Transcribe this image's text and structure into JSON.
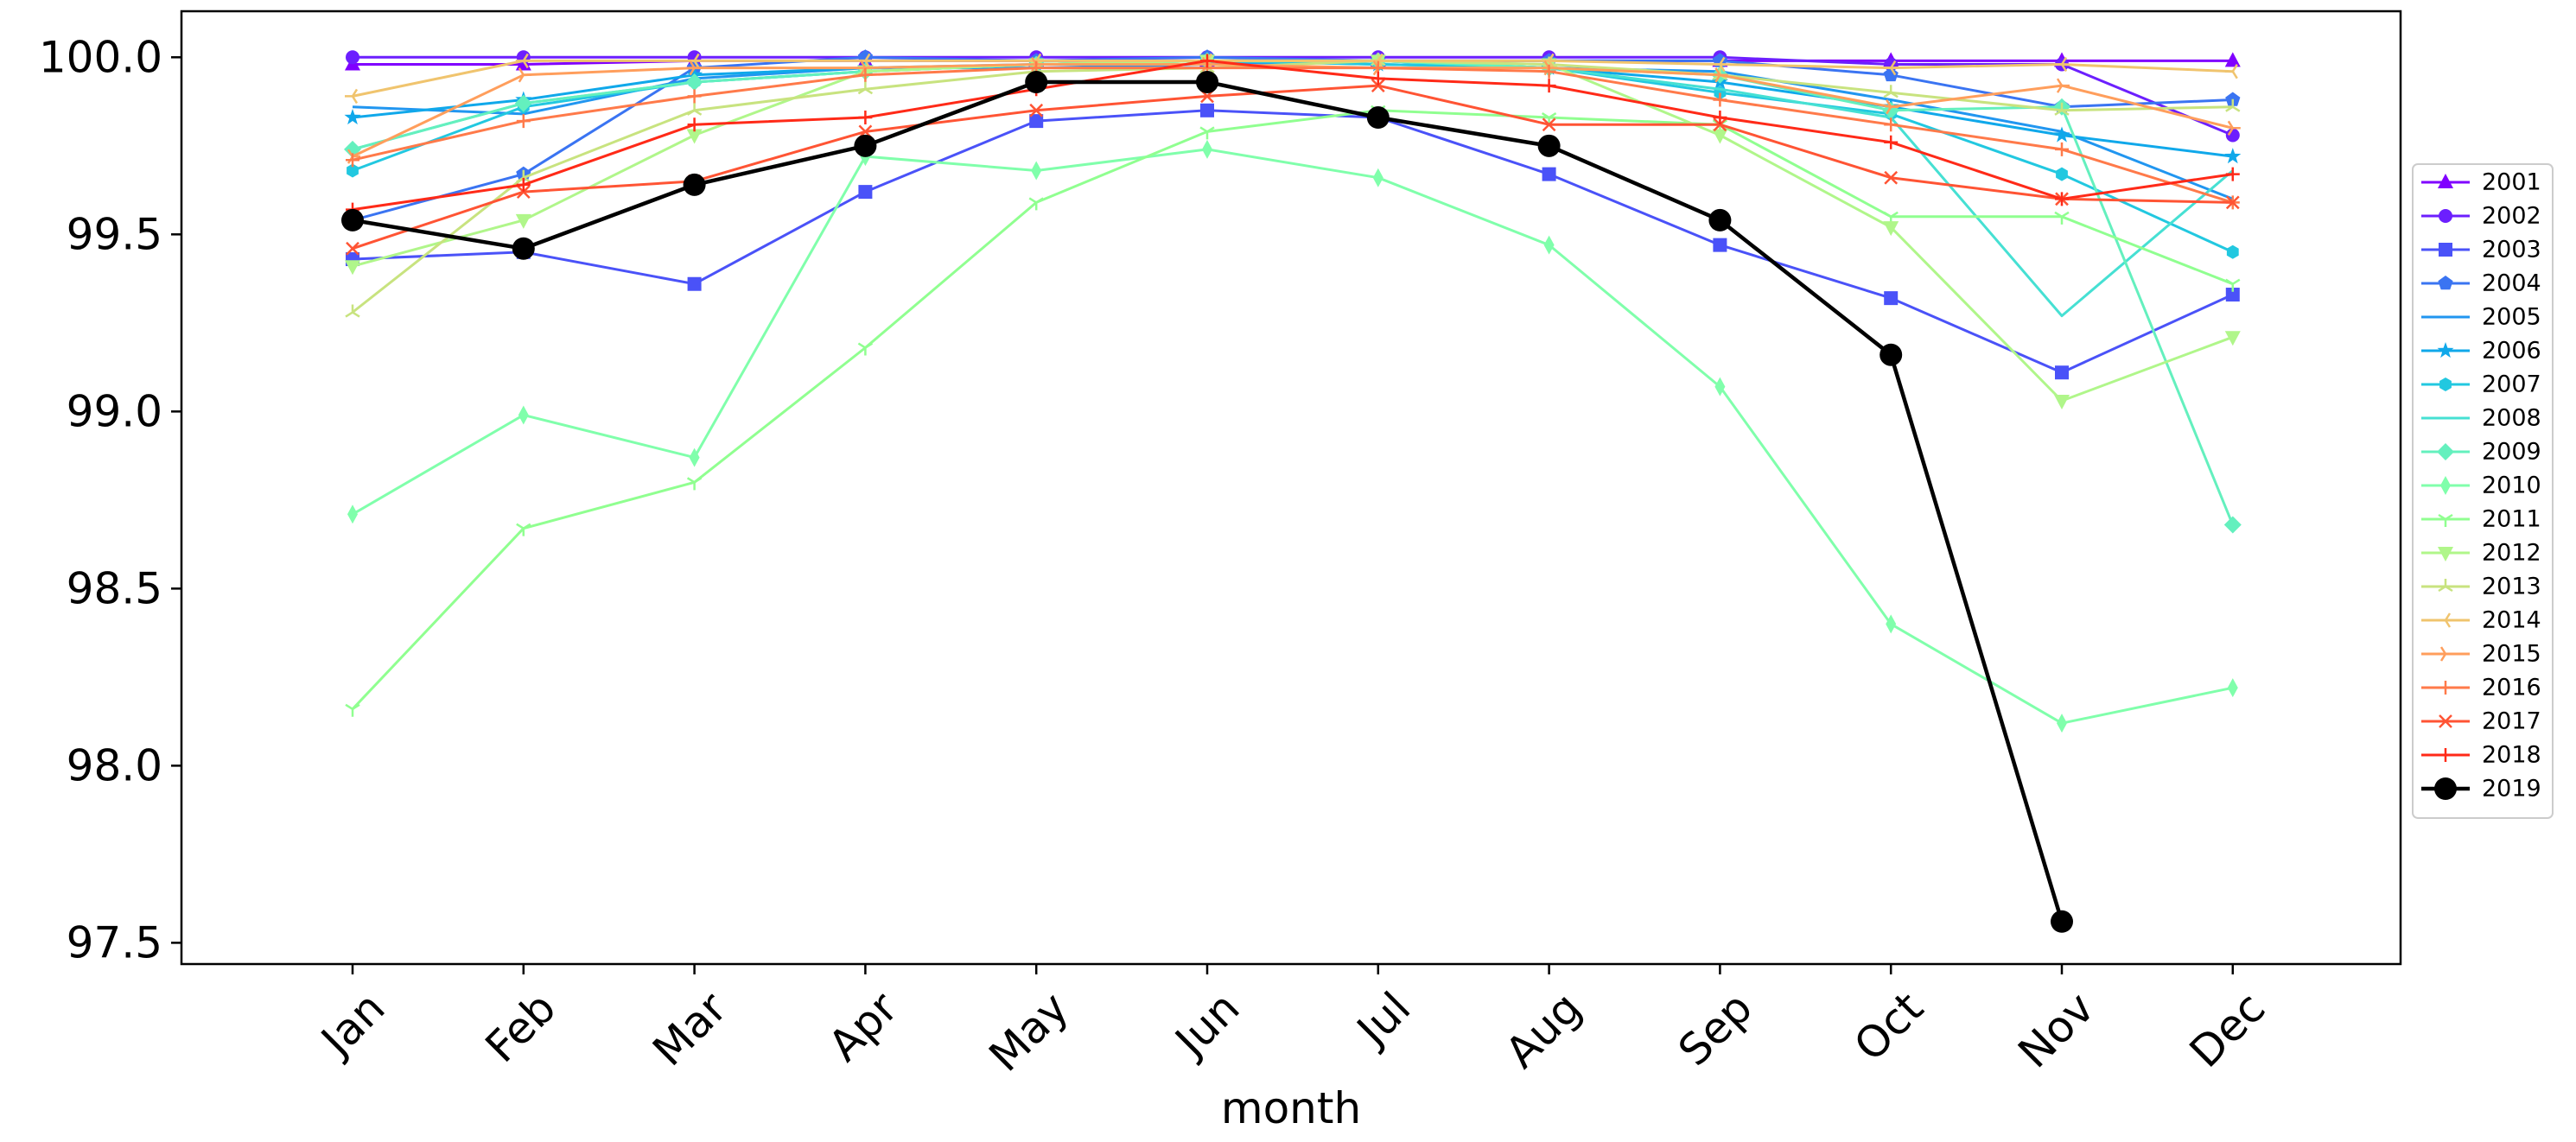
{
  "chart_data": {
    "type": "line",
    "title": "",
    "xlabel": "month",
    "ylabel": "",
    "categories": [
      "Jan",
      "Feb",
      "Mar",
      "Apr",
      "May",
      "Jun",
      "Jul",
      "Aug",
      "Sep",
      "Oct",
      "Nov",
      "Dec"
    ],
    "ylim": [
      97.44,
      100.13
    ],
    "yticks": [
      97.5,
      98.0,
      98.5,
      99.0,
      99.5,
      100.0
    ],
    "ytick_labels": [
      "97.5",
      "98.0",
      "98.5",
      "99.0",
      "99.5",
      "100.0"
    ],
    "grid": false,
    "legend_position": "right",
    "series": [
      {
        "name": "2001",
        "color": "#8000ff",
        "marker": "triangle",
        "values": [
          99.98,
          99.98,
          99.99,
          99.99,
          99.99,
          99.99,
          99.99,
          99.99,
          99.99,
          99.99,
          99.99,
          99.99
        ]
      },
      {
        "name": "2002",
        "color": "#6c1ffe",
        "marker": "circle",
        "values": [
          100.0,
          100.0,
          100.0,
          100.0,
          100.0,
          100.0,
          100.0,
          100.0,
          100.0,
          99.98,
          99.98,
          99.78
        ]
      },
      {
        "name": "2003",
        "color": "#4a52f8",
        "marker": "square",
        "values": [
          99.43,
          99.45,
          99.36,
          99.62,
          99.82,
          99.85,
          99.83,
          99.67,
          99.47,
          99.32,
          99.11,
          99.33
        ]
      },
      {
        "name": "2004",
        "color": "#3a74f2",
        "marker": "pentagon",
        "values": [
          99.54,
          99.67,
          99.97,
          100.0,
          99.99,
          100.0,
          99.99,
          99.99,
          99.99,
          99.95,
          99.86,
          99.88
        ]
      },
      {
        "name": "2005",
        "color": "#2196f0",
        "marker": "none",
        "values": [
          99.86,
          99.84,
          99.94,
          99.97,
          99.97,
          99.98,
          99.99,
          99.97,
          99.96,
          99.88,
          99.79,
          99.6
        ]
      },
      {
        "name": "2006",
        "color": "#10a8ea",
        "marker": "star",
        "values": [
          99.83,
          99.88,
          99.95,
          99.97,
          99.98,
          99.99,
          99.98,
          99.97,
          99.93,
          99.86,
          99.78,
          99.72
        ]
      },
      {
        "name": "2007",
        "color": "#22c8e0",
        "marker": "hexagon",
        "values": [
          99.68,
          99.86,
          99.93,
          99.96,
          99.98,
          99.99,
          99.98,
          99.97,
          99.9,
          99.84,
          99.67,
          99.45
        ]
      },
      {
        "name": "2008",
        "color": "#46e0d3",
        "marker": "none",
        "values": [
          99.74,
          99.87,
          99.93,
          99.96,
          99.98,
          99.99,
          99.99,
          99.97,
          99.91,
          99.83,
          99.27,
          99.68
        ]
      },
      {
        "name": "2009",
        "color": "#64f0be",
        "marker": "diamond",
        "values": [
          99.74,
          99.87,
          99.93,
          99.96,
          99.98,
          99.99,
          99.99,
          99.97,
          99.95,
          99.85,
          99.86,
          98.68
        ]
      },
      {
        "name": "2010",
        "color": "#80ffab",
        "marker": "thin_diamond",
        "values": [
          98.71,
          98.99,
          98.87,
          99.72,
          99.68,
          99.74,
          99.66,
          99.47,
          99.07,
          98.4,
          98.12,
          98.22
        ]
      },
      {
        "name": "2011",
        "color": "#90ff90",
        "marker": "tri_down",
        "values": [
          98.16,
          98.67,
          98.8,
          99.18,
          99.59,
          99.79,
          99.85,
          99.83,
          99.81,
          99.55,
          99.55,
          99.36
        ]
      },
      {
        "name": "2012",
        "color": "#b0f68a",
        "marker": "triangle_down",
        "values": [
          99.41,
          99.54,
          99.78,
          99.96,
          99.98,
          99.99,
          99.99,
          99.98,
          99.78,
          99.52,
          99.03,
          99.21
        ]
      },
      {
        "name": "2013",
        "color": "#c8e37f",
        "marker": "tri_up",
        "values": [
          99.28,
          99.66,
          99.85,
          99.91,
          99.96,
          99.97,
          99.99,
          99.98,
          99.95,
          99.9,
          99.85,
          99.86
        ]
      },
      {
        "name": "2014",
        "color": "#f0c46e",
        "marker": "tri_left",
        "values": [
          99.89,
          99.99,
          99.99,
          99.99,
          99.99,
          99.99,
          99.99,
          99.99,
          99.98,
          99.97,
          99.98,
          99.96
        ]
      },
      {
        "name": "2015",
        "color": "#ff9e5c",
        "marker": "tri_right",
        "values": [
          99.72,
          99.95,
          99.97,
          99.97,
          99.98,
          99.98,
          99.97,
          99.97,
          99.95,
          99.86,
          99.92,
          99.8
        ]
      },
      {
        "name": "2016",
        "color": "#ff7a4a",
        "marker": "plus",
        "values": [
          99.71,
          99.82,
          99.89,
          99.95,
          99.97,
          99.97,
          99.97,
          99.96,
          99.88,
          99.81,
          99.74,
          99.59
        ]
      },
      {
        "name": "2017",
        "color": "#ff5434",
        "marker": "x",
        "values": [
          99.46,
          99.62,
          99.65,
          99.79,
          99.85,
          99.89,
          99.92,
          99.81,
          99.81,
          99.66,
          99.6,
          99.59
        ]
      },
      {
        "name": "2018",
        "color": "#ff2a18",
        "marker": "plus",
        "values": [
          99.57,
          99.64,
          99.81,
          99.83,
          99.91,
          99.99,
          99.94,
          99.92,
          99.83,
          99.76,
          99.6,
          99.67
        ]
      },
      {
        "name": "2019",
        "color": "#000000",
        "marker": "big_circle",
        "values": [
          99.54,
          99.46,
          99.64,
          99.75,
          99.93,
          99.93,
          99.83,
          99.75,
          99.54,
          99.16,
          97.56,
          null
        ]
      }
    ]
  }
}
